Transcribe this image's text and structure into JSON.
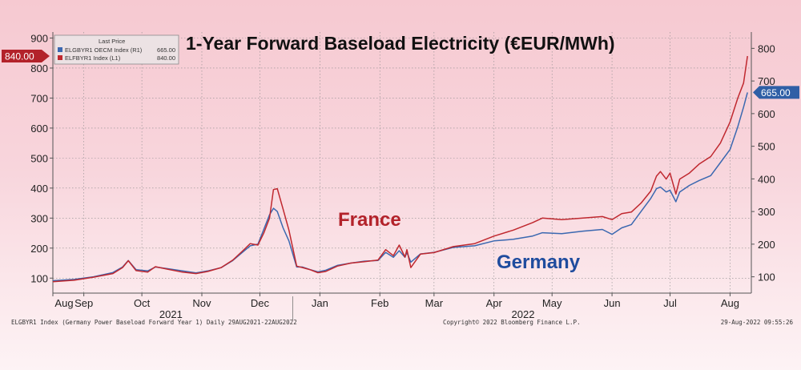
{
  "footer": {
    "left": "ELGBYR1 Index (Germany Power Baseload Forward Year 1)  Daily 29AUG2021-22AUG2022",
    "center": "Copyright© 2022 Bloomberg Finance L.P.",
    "right": "29-Aug-2022 09:55:26"
  },
  "colors": {
    "france": "#c0282f",
    "germany": "#3b68b0",
    "grid": "#8c8c8c",
    "annotation_france": "#b3222a",
    "annotation_germany": "#1f4c9e"
  },
  "chart_data": {
    "type": "line",
    "title": "1-Year Forward Baseload Electricity (€EUR/MWh)",
    "legend": {
      "header": "Last Price",
      "placement": "top-left",
      "entries": [
        {
          "label": "ELGBYR1 OECM Index  (R1)",
          "value": "665.00"
        },
        {
          "label": "ELFBYR1 Index  (L1)",
          "value": "840.00"
        }
      ]
    },
    "annotations": [
      {
        "text": "France",
        "series": "ELFBYR1"
      },
      {
        "text": "Germany",
        "series": "ELGBYR1"
      }
    ],
    "last_value_tags": [
      {
        "text": "840.00",
        "axis": "left",
        "value": 840
      },
      {
        "text": "665.00",
        "axis": "right",
        "value": 665
      }
    ],
    "x_range": [
      "2021-08-30",
      "2022-08-26"
    ],
    "x_ticks": [
      {
        "date": "2021-08-30",
        "label": "Aug"
      },
      {
        "date": "2021-09-15",
        "label": "Sep"
      },
      {
        "date": "2021-10-15",
        "label": "Oct"
      },
      {
        "date": "2021-11-15",
        "label": "Nov"
      },
      {
        "date": "2021-12-15",
        "label": "Dec"
      },
      {
        "date": "2022-01-15",
        "label": "Jan"
      },
      {
        "date": "2022-02-15",
        "label": "Feb"
      },
      {
        "date": "2022-03-15",
        "label": "Mar"
      },
      {
        "date": "2022-04-15",
        "label": "Apr"
      },
      {
        "date": "2022-05-15",
        "label": "May"
      },
      {
        "date": "2022-06-15",
        "label": "Jun"
      },
      {
        "date": "2022-07-15",
        "label": "Jul"
      },
      {
        "date": "2022-08-15",
        "label": "Aug"
      }
    ],
    "year_labels": [
      {
        "label": "2021",
        "date": "2021-10-30"
      },
      {
        "label": "2022",
        "date": "2022-04-30"
      }
    ],
    "y_left": {
      "min": 50,
      "max": 920,
      "ticks": [
        100,
        200,
        300,
        400,
        500,
        600,
        700,
        800,
        900
      ]
    },
    "y_right": {
      "min": 50,
      "max": 850,
      "ticks": [
        100,
        200,
        300,
        400,
        500,
        600,
        700,
        800
      ]
    },
    "grid": true,
    "series": [
      {
        "key": "ELFBYR1",
        "axis": "left",
        "points": [
          [
            "2021-08-30",
            88
          ],
          [
            "2021-09-10",
            93
          ],
          [
            "2021-09-20",
            103
          ],
          [
            "2021-09-30",
            115
          ],
          [
            "2021-10-05",
            135
          ],
          [
            "2021-10-08",
            158
          ],
          [
            "2021-10-12",
            125
          ],
          [
            "2021-10-18",
            120
          ],
          [
            "2021-10-22",
            138
          ],
          [
            "2021-10-28",
            130
          ],
          [
            "2021-11-05",
            120
          ],
          [
            "2021-11-12",
            115
          ],
          [
            "2021-11-18",
            122
          ],
          [
            "2021-11-25",
            135
          ],
          [
            "2021-12-01",
            160
          ],
          [
            "2021-12-06",
            190
          ],
          [
            "2021-12-10",
            215
          ],
          [
            "2021-12-14",
            210
          ],
          [
            "2021-12-17",
            250
          ],
          [
            "2021-12-20",
            300
          ],
          [
            "2021-12-22",
            395
          ],
          [
            "2021-12-24",
            398
          ],
          [
            "2021-12-27",
            330
          ],
          [
            "2021-12-30",
            260
          ],
          [
            "2022-01-03",
            140
          ],
          [
            "2022-01-06",
            135
          ],
          [
            "2022-01-10",
            128
          ],
          [
            "2022-01-14",
            118
          ],
          [
            "2022-01-18",
            122
          ],
          [
            "2022-01-24",
            140
          ],
          [
            "2022-01-31",
            150
          ],
          [
            "2022-02-07",
            155
          ],
          [
            "2022-02-14",
            160
          ],
          [
            "2022-02-18",
            195
          ],
          [
            "2022-02-22",
            175
          ],
          [
            "2022-02-25",
            210
          ],
          [
            "2022-02-28",
            170
          ],
          [
            "2022-03-01",
            195
          ],
          [
            "2022-03-03",
            135
          ],
          [
            "2022-03-08",
            180
          ],
          [
            "2022-03-15",
            185
          ],
          [
            "2022-03-25",
            205
          ],
          [
            "2022-04-05",
            215
          ],
          [
            "2022-04-15",
            240
          ],
          [
            "2022-04-25",
            260
          ],
          [
            "2022-05-05",
            285
          ],
          [
            "2022-05-10",
            300
          ],
          [
            "2022-05-20",
            295
          ],
          [
            "2022-05-31",
            300
          ],
          [
            "2022-06-10",
            305
          ],
          [
            "2022-06-15",
            295
          ],
          [
            "2022-06-20",
            315
          ],
          [
            "2022-06-25",
            320
          ],
          [
            "2022-06-30",
            350
          ],
          [
            "2022-07-05",
            390
          ],
          [
            "2022-07-08",
            440
          ],
          [
            "2022-07-10",
            455
          ],
          [
            "2022-07-13",
            430
          ],
          [
            "2022-07-15",
            450
          ],
          [
            "2022-07-18",
            380
          ],
          [
            "2022-07-20",
            430
          ],
          [
            "2022-07-25",
            450
          ],
          [
            "2022-07-30",
            480
          ],
          [
            "2022-08-05",
            505
          ],
          [
            "2022-08-10",
            550
          ],
          [
            "2022-08-15",
            620
          ],
          [
            "2022-08-19",
            700
          ],
          [
            "2022-08-22",
            750
          ],
          [
            "2022-08-24",
            840
          ]
        ]
      },
      {
        "key": "ELGBYR1",
        "axis": "right",
        "points": [
          [
            "2021-08-30",
            88
          ],
          [
            "2021-09-10",
            92
          ],
          [
            "2021-09-20",
            100
          ],
          [
            "2021-09-30",
            113
          ],
          [
            "2021-10-05",
            130
          ],
          [
            "2021-10-08",
            150
          ],
          [
            "2021-10-12",
            122
          ],
          [
            "2021-10-18",
            118
          ],
          [
            "2021-10-22",
            130
          ],
          [
            "2021-10-28",
            125
          ],
          [
            "2021-11-05",
            118
          ],
          [
            "2021-11-12",
            112
          ],
          [
            "2021-11-18",
            118
          ],
          [
            "2021-11-25",
            128
          ],
          [
            "2021-12-01",
            150
          ],
          [
            "2021-12-06",
            175
          ],
          [
            "2021-12-10",
            195
          ],
          [
            "2021-12-14",
            200
          ],
          [
            "2021-12-17",
            245
          ],
          [
            "2021-12-20",
            290
          ],
          [
            "2021-12-22",
            310
          ],
          [
            "2021-12-24",
            300
          ],
          [
            "2021-12-27",
            250
          ],
          [
            "2021-12-30",
            210
          ],
          [
            "2022-01-03",
            130
          ],
          [
            "2022-01-06",
            130
          ],
          [
            "2022-01-10",
            122
          ],
          [
            "2022-01-14",
            115
          ],
          [
            "2022-01-18",
            120
          ],
          [
            "2022-01-24",
            135
          ],
          [
            "2022-01-31",
            142
          ],
          [
            "2022-02-07",
            148
          ],
          [
            "2022-02-14",
            150
          ],
          [
            "2022-02-18",
            175
          ],
          [
            "2022-02-22",
            160
          ],
          [
            "2022-02-25",
            180
          ],
          [
            "2022-02-28",
            160
          ],
          [
            "2022-03-01",
            175
          ],
          [
            "2022-03-03",
            145
          ],
          [
            "2022-03-08",
            170
          ],
          [
            "2022-03-15",
            175
          ],
          [
            "2022-03-25",
            190
          ],
          [
            "2022-04-05",
            195
          ],
          [
            "2022-04-15",
            210
          ],
          [
            "2022-04-25",
            215
          ],
          [
            "2022-05-05",
            225
          ],
          [
            "2022-05-10",
            235
          ],
          [
            "2022-05-20",
            232
          ],
          [
            "2022-05-31",
            240
          ],
          [
            "2022-06-10",
            245
          ],
          [
            "2022-06-15",
            230
          ],
          [
            "2022-06-20",
            250
          ],
          [
            "2022-06-25",
            260
          ],
          [
            "2022-06-30",
            300
          ],
          [
            "2022-07-05",
            340
          ],
          [
            "2022-07-08",
            370
          ],
          [
            "2022-07-10",
            375
          ],
          [
            "2022-07-13",
            360
          ],
          [
            "2022-07-15",
            365
          ],
          [
            "2022-07-18",
            330
          ],
          [
            "2022-07-20",
            360
          ],
          [
            "2022-07-25",
            380
          ],
          [
            "2022-07-30",
            395
          ],
          [
            "2022-08-05",
            410
          ],
          [
            "2022-08-10",
            450
          ],
          [
            "2022-08-15",
            490
          ],
          [
            "2022-08-19",
            560
          ],
          [
            "2022-08-22",
            620
          ],
          [
            "2022-08-24",
            665
          ]
        ]
      }
    ]
  }
}
